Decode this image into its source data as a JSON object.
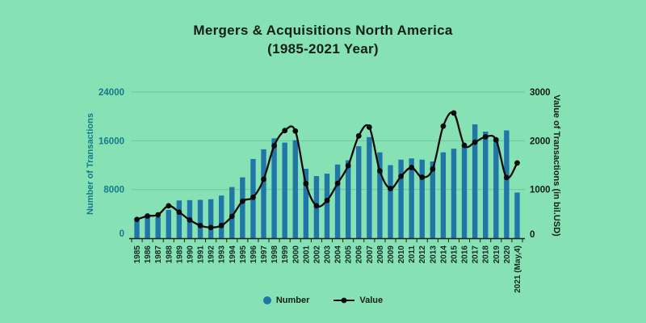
{
  "title": "Mergers & Acquisitions North America",
  "subtitle": "(1985-2021 Year)",
  "legend": {
    "number_label": "Number",
    "value_label": "Value"
  },
  "axes": {
    "left": {
      "title": "Number of Transactions",
      "ticks": [
        "0",
        "8000",
        "16000",
        "24000"
      ]
    },
    "right": {
      "title": "Value of Transactions (in bil.USD)",
      "ticks": [
        "0",
        "1000",
        "2000",
        "3000"
      ]
    }
  },
  "colors": {
    "background": "#86e1b5",
    "bar": "#2176a8",
    "line": "#0a0a0a",
    "gridline": "#6dc7a0",
    "left_axis_text": "#157a8d",
    "dark_text": "#0d1f17",
    "x_label_text": "#122a22"
  },
  "chart_data": {
    "type": "bar+line",
    "title": "Mergers & Acquisitions North America (1985-2021 Year)",
    "categories": [
      "1985",
      "1986",
      "1987",
      "1988",
      "1989",
      "1990",
      "1991",
      "1992",
      "1993",
      "1994",
      "1995",
      "1996",
      "1997",
      "1998",
      "1999",
      "2000",
      "2001",
      "2002",
      "2003",
      "2004",
      "2005",
      "2006",
      "2007",
      "2008",
      "2009",
      "2010",
      "2011",
      "2012",
      "2013",
      "2014",
      "2015",
      "2016",
      "2017",
      "2018",
      "2019",
      "2020",
      "2021 (May,4)"
    ],
    "series": [
      {
        "name": "Number",
        "type": "bar",
        "axis": "left",
        "values": [
          2800,
          3400,
          3450,
          4650,
          6200,
          6250,
          6300,
          6400,
          7000,
          8400,
          10000,
          13000,
          14600,
          16400,
          15700,
          16100,
          11400,
          10200,
          10600,
          12100,
          12800,
          15100,
          16600,
          14100,
          12000,
          12900,
          13100,
          12900,
          12600,
          14100,
          14700,
          15100,
          18700,
          17500,
          16300,
          17700,
          7500
        ]
      },
      {
        "name": "Value",
        "type": "line",
        "axis": "right",
        "values": [
          385,
          455,
          480,
          665,
          535,
          375,
          260,
          220,
          260,
          450,
          760,
          840,
          1210,
          1900,
          2210,
          2200,
          1120,
          665,
          775,
          1125,
          1490,
          2100,
          2280,
          1380,
          1020,
          1270,
          1450,
          1250,
          1420,
          2300,
          2570,
          1905,
          1970,
          2080,
          2020,
          1245,
          1545
        ]
      }
    ],
    "y_left": {
      "label": "Number of Transactions",
      "range": [
        0,
        24000
      ],
      "tick_step": 8000
    },
    "y_right": {
      "label": "Value of Transactions (in bil.USD)",
      "range": [
        0,
        3000
      ],
      "tick_step": 1000
    },
    "grid": true,
    "legend_position": "bottom"
  }
}
